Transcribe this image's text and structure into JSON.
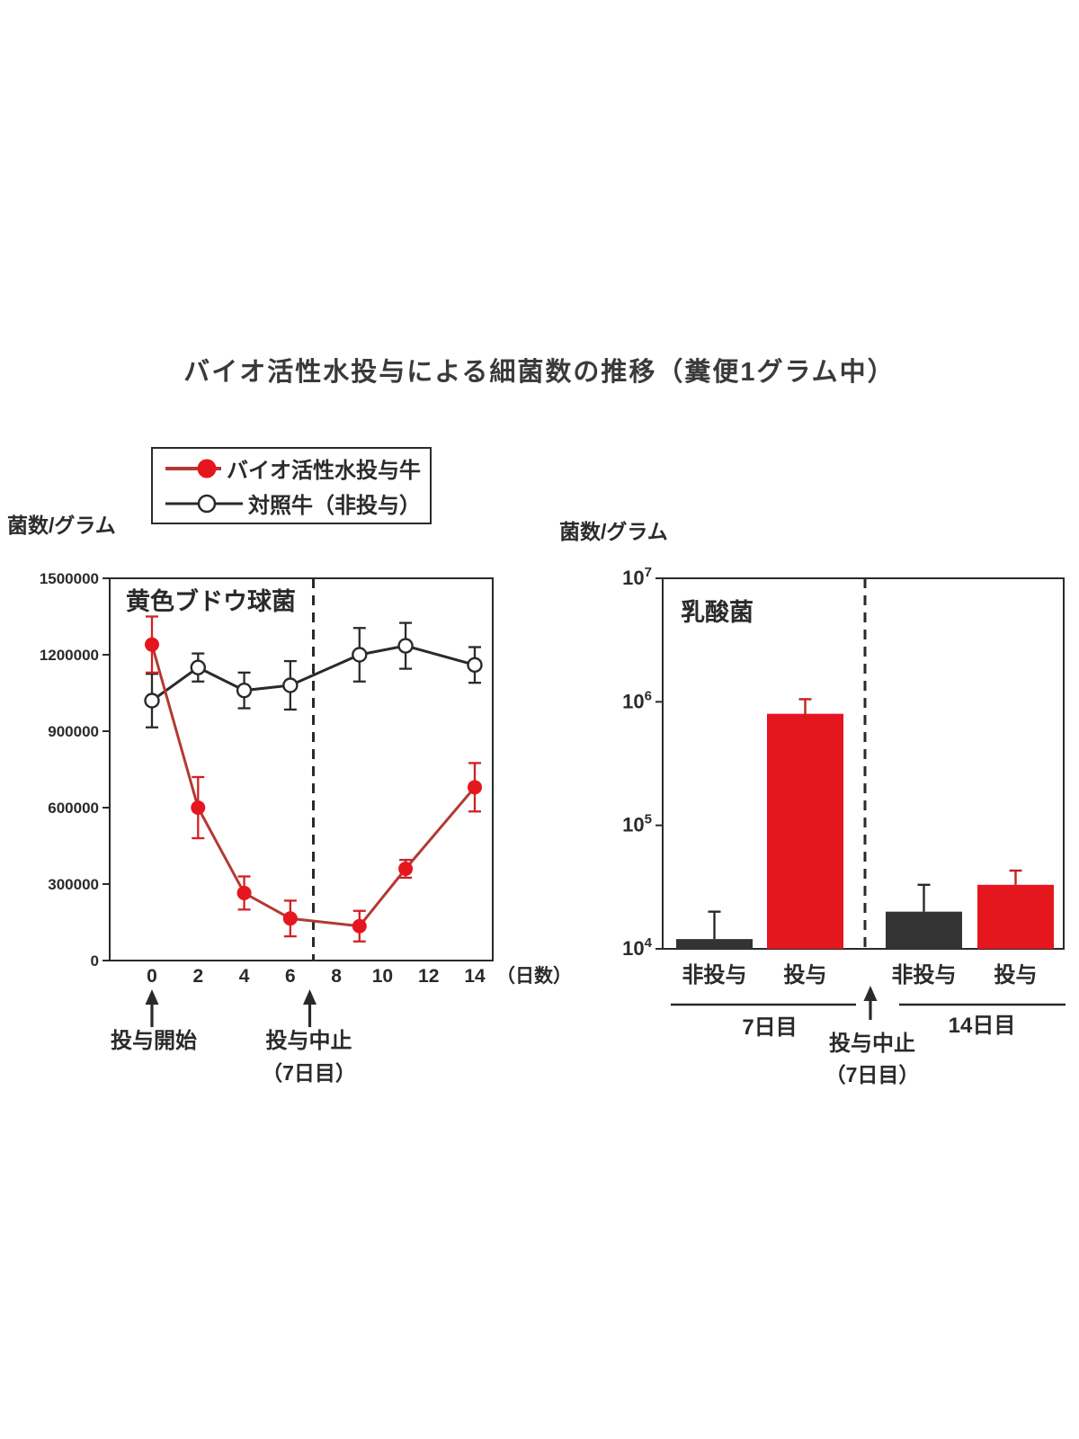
{
  "page": {
    "title": "バイオ活性水投与による細菌数の推移（糞便1グラム中）",
    "background": "#ffffff"
  },
  "colors": {
    "treated_marker": "#e6161e",
    "treated_line": "#b23a33",
    "control_line": "#2a2a2a",
    "black_bar": "#333333",
    "red_bar": "#e6161e",
    "axis": "#2a2a2a"
  },
  "legend": {
    "items": [
      {
        "label": "バイオ活性水投与牛",
        "marker": "filled-circle",
        "marker_color": "#e6161e",
        "line_color": "#b23a33"
      },
      {
        "label": "対照牛（非投与）",
        "marker": "open-circle",
        "marker_color": "#ffffff",
        "line_color": "#2a2a2a"
      }
    ]
  },
  "chart_data": [
    {
      "id": "staphylococcus-line-chart",
      "type": "line",
      "title": "黄色ブドウ球菌",
      "ylabel": "菌数/グラム",
      "xlabel": "（日数）",
      "x": [
        0,
        2,
        4,
        6,
        9,
        11,
        14
      ],
      "xticks": [
        0,
        2,
        4,
        6,
        8,
        10,
        12,
        14
      ],
      "ylim": [
        0,
        1500000
      ],
      "yticks": [
        1500000,
        1200000,
        900000,
        600000,
        300000,
        0
      ],
      "grid": false,
      "legend_position": "top-left-outside",
      "series": [
        {
          "name": "対照牛（非投与）",
          "marker": "open-circle",
          "values": [
            1020000,
            1150000,
            1060000,
            1080000,
            1200000,
            1235000,
            1160000
          ],
          "errors": [
            105000,
            55000,
            70000,
            95000,
            105000,
            90000,
            70000
          ]
        },
        {
          "name": "バイオ活性水投与牛",
          "marker": "filled-circle",
          "values": [
            1240000,
            600000,
            265000,
            165000,
            135000,
            360000,
            680000
          ],
          "errors": [
            110000,
            120000,
            65000,
            70000,
            60000,
            35000,
            95000
          ]
        }
      ],
      "dashed_line_x": 7,
      "annotations": [
        {
          "text": "投与開始",
          "x": 0
        },
        {
          "text": "投与中止",
          "x": 7
        },
        {
          "text": "（7日目）",
          "x": 7
        }
      ]
    },
    {
      "id": "lactic-acid-bar-chart",
      "type": "bar",
      "title": "乳酸菌",
      "ylabel": "菌数/グラム",
      "yscale": "log",
      "ylim": [
        10000,
        10000000
      ],
      "ytick_labels": [
        "10⁴",
        "10⁵",
        "10⁶",
        "10⁷"
      ],
      "ytick_exponents": [
        4,
        5,
        6,
        7
      ],
      "grid": false,
      "dashed_divider": true,
      "groups": [
        {
          "label": "7日目",
          "bars": [
            {
              "label": "非投与",
              "value": 12000,
              "error_top": 20000,
              "color_key": "black_bar"
            },
            {
              "label": "投与",
              "value": 800000,
              "error_top": 1050000,
              "color_key": "red_bar"
            }
          ]
        },
        {
          "label": "14日目",
          "bars": [
            {
              "label": "非投与",
              "value": 20000,
              "error_top": 33000,
              "color_key": "black_bar"
            },
            {
              "label": "投与",
              "value": 33000,
              "error_top": 43000,
              "color_key": "red_bar"
            }
          ]
        }
      ],
      "center_annotation": [
        "投与中止",
        "（7日目）"
      ]
    }
  ]
}
